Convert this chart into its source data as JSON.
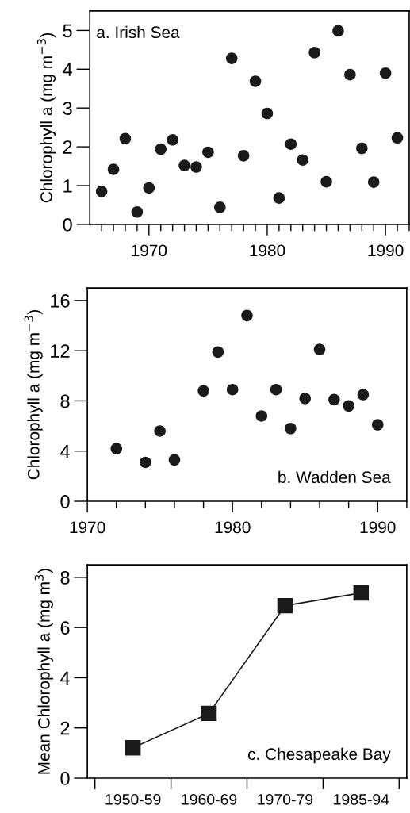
{
  "chart_data": [
    {
      "type": "scatter",
      "ylabel": "Chlorophyll a (mg m$^{−3}$)",
      "annotations": [
        "a. Irish Sea"
      ],
      "marker": "circle",
      "x": [
        1966,
        1967,
        1968,
        1969,
        1970,
        1971,
        1972,
        1973,
        1974,
        1975,
        1976,
        1977,
        1978,
        1979,
        1980,
        1981,
        1982,
        1983,
        1984,
        1985,
        1986,
        1987,
        1988,
        1989,
        1990,
        1991
      ],
      "series": [
        {
          "color": "#1a1a1a",
          "values": [
            0.85,
            1.42,
            2.21,
            0.32,
            0.94,
            1.94,
            2.18,
            1.52,
            1.48,
            1.86,
            0.44,
            4.28,
            1.77,
            3.69,
            2.86,
            0.68,
            2.07,
            1.66,
            4.43,
            1.1,
            4.99,
            3.86,
            1.96,
            1.09,
            3.9,
            2.23
          ]
        }
      ],
      "xlim": [
        1965,
        1992
      ],
      "ylim": [
        0,
        5.5
      ],
      "yticks": [
        0,
        1,
        2,
        3,
        4,
        5
      ],
      "xticks": [
        {
          "value": 1966,
          "label": null
        },
        {
          "value": 1967,
          "label": null
        },
        {
          "value": 1968,
          "label": null
        },
        {
          "value": 1969,
          "label": null
        },
        1970,
        {
          "value": 1971,
          "label": null
        },
        {
          "value": 1972,
          "label": null
        },
        {
          "value": 1973,
          "label": null
        },
        {
          "value": 1974,
          "label": null
        },
        {
          "value": 1975,
          "label": null
        },
        {
          "value": 1976,
          "label": null
        },
        {
          "value": 1977,
          "label": null
        },
        {
          "value": 1978,
          "label": null
        },
        {
          "value": 1979,
          "label": null
        },
        1980,
        {
          "value": 1981,
          "label": null
        },
        {
          "value": 1982,
          "label": null
        },
        {
          "value": 1983,
          "label": null
        },
        {
          "value": 1984,
          "label": null
        },
        {
          "value": 1985,
          "label": null
        },
        {
          "value": 1986,
          "label": null
        },
        {
          "value": 1987,
          "label": null
        },
        {
          "value": 1988,
          "label": null
        },
        {
          "value": 1989,
          "label": null
        },
        1990,
        {
          "value": 1991,
          "label": null
        },
        {
          "value": 1992,
          "label": null
        }
      ],
      "grid": false
    },
    {
      "type": "scatter",
      "ylabel": "Chlorophyll a (mg m$^{−3}$)",
      "annotations": [
        "b. Wadden Sea"
      ],
      "marker": "circle",
      "x": [
        1972,
        1974,
        1975,
        1976,
        1978,
        1979,
        1980,
        1981,
        1982,
        1983,
        1984,
        1985,
        1986,
        1987,
        1988,
        1989,
        1990
      ],
      "series": [
        {
          "color": "#1a1a1a",
          "values": [
            4.2,
            3.1,
            5.6,
            3.3,
            8.8,
            11.9,
            8.9,
            14.8,
            6.8,
            8.9,
            5.8,
            8.2,
            12.1,
            8.1,
            7.6,
            8.5,
            6.1
          ]
        }
      ],
      "xlim": [
        1970,
        1992
      ],
      "ylim": [
        0,
        17
      ],
      "yticks": [
        0,
        4,
        8,
        12,
        16
      ],
      "xticks": [
        1970,
        {
          "value": 1972,
          "label": null
        },
        {
          "value": 1974,
          "label": null
        },
        {
          "value": 1976,
          "label": null
        },
        {
          "value": 1978,
          "label": null
        },
        1980,
        {
          "value": 1982,
          "label": null
        },
        {
          "value": 1984,
          "label": null
        },
        {
          "value": 1986,
          "label": null
        },
        {
          "value": 1988,
          "label": null
        },
        1990,
        {
          "value": 1992,
          "label": null
        }
      ],
      "grid": false
    },
    {
      "type": "line",
      "ylabel": "Mean Chlorophyll a (mg m$^{3}$)",
      "annotations": [
        "c. Chesapeake Bay"
      ],
      "marker": "square",
      "line_style": "solid",
      "categories": [
        "1950-59",
        "1960-69",
        "1970-79",
        "1985-94"
      ],
      "series": [
        {
          "color": "#1a1a1a",
          "values": [
            1.21,
            2.58,
            6.87,
            7.38
          ]
        }
      ],
      "ylim": [
        0,
        8.5
      ],
      "yticks": [
        0,
        2,
        4,
        6,
        8
      ],
      "grid": false
    }
  ]
}
